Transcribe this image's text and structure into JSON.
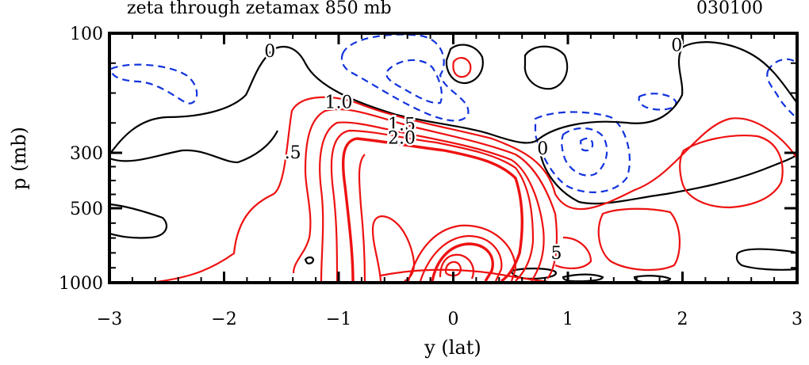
{
  "header": {
    "title": "zeta through zetamax 850 mb",
    "code": "030100"
  },
  "chart_data": {
    "type": "contour",
    "title": "zeta through zetamax 850 mb",
    "xlabel": "y (lat)",
    "ylabel": "p (mb)",
    "xlim": [
      -3,
      3
    ],
    "x_ticks": [
      {
        "value": -3,
        "label": "−3"
      },
      {
        "value": -2,
        "label": "−2"
      },
      {
        "value": -1,
        "label": "−1"
      },
      {
        "value": 0,
        "label": "0"
      },
      {
        "value": 1,
        "label": "1"
      },
      {
        "value": 2,
        "label": "2"
      },
      {
        "value": 3,
        "label": "3"
      }
    ],
    "y_ticks": [
      {
        "value": 100,
        "label": "100"
      },
      {
        "value": 300,
        "label": "300"
      },
      {
        "value": 500,
        "label": "500"
      },
      {
        "value": 1000,
        "label": "1000"
      }
    ],
    "contour_labels": [
      {
        "text": "0",
        "x": -1.6,
        "p": 140
      },
      {
        "text": "0",
        "x": 1.95,
        "p": 130
      },
      {
        "text": "0",
        "x": 0.78,
        "p": 305
      },
      {
        "text": "1.0",
        "x": -1.0,
        "p": 225
      },
      {
        "text": "1.5",
        "x": -0.45,
        "p": 262
      },
      {
        "text": "2.0",
        "x": -0.45,
        "p": 285
      },
      {
        "text": ".5",
        "x": -1.4,
        "p": 320
      },
      {
        "text": "5",
        "x": 0.9,
        "p": 840
      }
    ],
    "colors": {
      "positive": "#ee1111",
      "zero": "#000000",
      "negative": "#1133dd",
      "frame": "#000000"
    }
  }
}
